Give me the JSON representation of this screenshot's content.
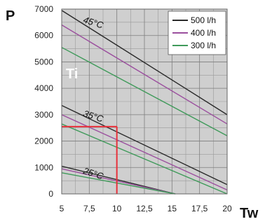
{
  "chart_data": {
    "type": "line",
    "ylabel": "P",
    "xlabel": "Tw",
    "inner_label": "Ti",
    "xlim": [
      5,
      20
    ],
    "ylim": [
      0,
      7000
    ],
    "xticks": [
      "5",
      "7,5",
      "10",
      "12,5",
      "15",
      "17,5",
      "20"
    ],
    "yticks": [
      "0",
      "1000",
      "2000",
      "3000",
      "4000",
      "5000",
      "6000",
      "7000"
    ],
    "grid": true,
    "legend_position": "top-right",
    "legend": [
      {
        "name": "500 l/h",
        "color": "#2a2a2a"
      },
      {
        "name": "400 l/h",
        "color": "#9b4f9e"
      },
      {
        "name": "300 l/h",
        "color": "#3f9a5a"
      }
    ],
    "group_labels": [
      {
        "text": "45°C",
        "x": 6.9,
        "y": 6500
      },
      {
        "text": "35°C",
        "x": 6.9,
        "y": 2950
      },
      {
        "text": "25°C",
        "x": 6.9,
        "y": 780
      }
    ],
    "series": [
      {
        "group": "45°C",
        "flow": "500 l/h",
        "color": "#2a2a2a",
        "x": [
          5,
          20
        ],
        "y": [
          6950,
          3000
        ]
      },
      {
        "group": "45°C",
        "flow": "400 l/h",
        "color": "#9b4f9e",
        "x": [
          5,
          20
        ],
        "y": [
          6400,
          2650
        ]
      },
      {
        "group": "45°C",
        "flow": "300 l/h",
        "color": "#3f9a5a",
        "x": [
          5,
          20
        ],
        "y": [
          5550,
          2200
        ]
      },
      {
        "group": "35°C",
        "flow": "500 l/h",
        "color": "#2a2a2a",
        "x": [
          5,
          20
        ],
        "y": [
          3350,
          350
        ]
      },
      {
        "group": "35°C",
        "flow": "400 l/h",
        "color": "#9b4f9e",
        "x": [
          5,
          20
        ],
        "y": [
          3000,
          150
        ]
      },
      {
        "group": "35°C",
        "flow": "300 l/h",
        "color": "#3f9a5a",
        "x": [
          5,
          20
        ],
        "y": [
          2650,
          0
        ]
      },
      {
        "group": "25°C",
        "flow": "500 l/h",
        "color": "#2a2a2a",
        "x": [
          5,
          15.3
        ],
        "y": [
          1050,
          0
        ]
      },
      {
        "group": "25°C",
        "flow": "400 l/h",
        "color": "#9b4f9e",
        "x": [
          5,
          15.3
        ],
        "y": [
          950,
          0
        ]
      },
      {
        "group": "25°C",
        "flow": "300 l/h",
        "color": "#3f9a5a",
        "x": [
          5,
          15.3
        ],
        "y": [
          800,
          0
        ]
      }
    ],
    "reference_lines": [
      {
        "color": "#e8303a",
        "x": [
          5,
          10
        ],
        "y": [
          2550,
          2550
        ]
      },
      {
        "color": "#e8303a",
        "x": [
          10,
          10
        ],
        "y": [
          2550,
          0
        ]
      }
    ]
  }
}
